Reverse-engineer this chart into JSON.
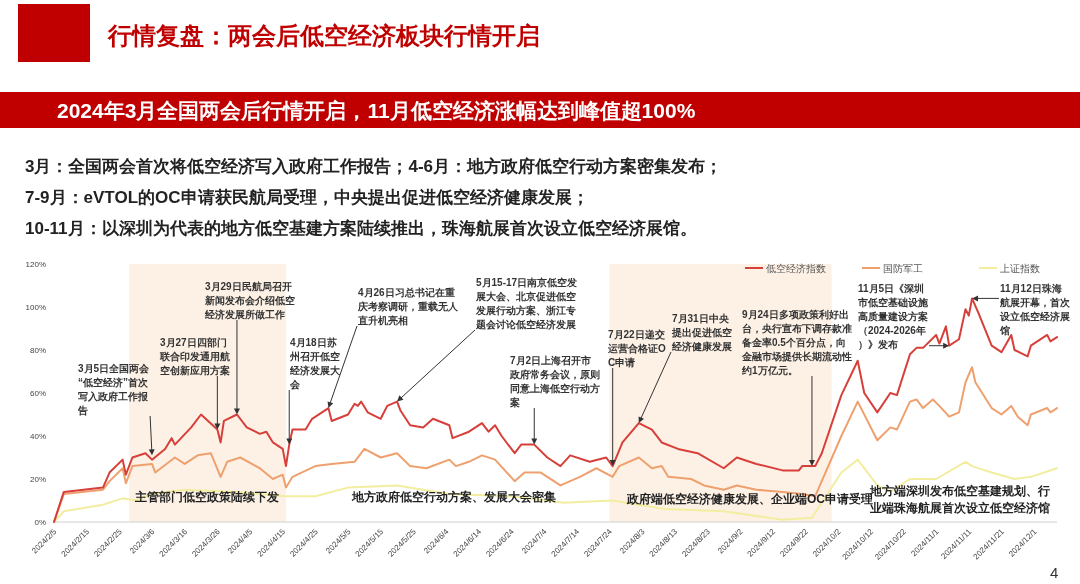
{
  "chart_data": {
    "type": "line",
    "title": "行情复盘：两会后低空经济板块行情开启",
    "subtitle": "2024年3月全国两会后行情开启，11月低空经济涨幅达到峰值超100%",
    "xlim": [
      "2024-02-05",
      "2024-12-08"
    ],
    "xticks": [
      {
        "value": "2024-02-05",
        "label": "2024/2/5"
      },
      {
        "value": "2024-02-15",
        "label": "2024/2/15"
      },
      {
        "value": "2024-02-25",
        "label": "2024/2/25"
      },
      {
        "value": "2024-03-06",
        "label": "2024/3/6"
      },
      {
        "value": "2024-03-16",
        "label": "2024/3/16"
      },
      {
        "value": "2024-03-26",
        "label": "2024/3/26"
      },
      {
        "value": "2024-04-05",
        "label": "2024/4/5"
      },
      {
        "value": "2024-04-15",
        "label": "2024/4/15"
      },
      {
        "value": "2024-04-25",
        "label": "2024/4/25"
      },
      {
        "value": "2024-05-05",
        "label": "2024/5/5"
      },
      {
        "value": "2024-05-15",
        "label": "2024/5/15"
      },
      {
        "value": "2024-05-25",
        "label": "2024/5/25"
      },
      {
        "value": "2024-06-04",
        "label": "2024/6/4"
      },
      {
        "value": "2024-06-14",
        "label": "2024/6/14"
      },
      {
        "value": "2024-06-24",
        "label": "2024/6/24"
      },
      {
        "value": "2024-07-04",
        "label": "2024/7/4"
      },
      {
        "value": "2024-07-14",
        "label": "2024/7/14"
      },
      {
        "value": "2024-07-24",
        "label": "2024/7/24"
      },
      {
        "value": "2024-08-03",
        "label": "2024/8/3"
      },
      {
        "value": "2024-08-13",
        "label": "2024/8/13"
      },
      {
        "value": "2024-08-23",
        "label": "2024/8/23"
      },
      {
        "value": "2024-09-02",
        "label": "2024/9/2"
      },
      {
        "value": "2024-09-12",
        "label": "2024/9/12"
      },
      {
        "value": "2024-09-22",
        "label": "2024/9/22"
      },
      {
        "value": "2024-10-02",
        "label": "2024/10/2"
      },
      {
        "value": "2024-10-12",
        "label": "2024/10/12"
      },
      {
        "value": "2024-10-22",
        "label": "2024/10/22"
      },
      {
        "value": "2024-11-01",
        "label": "2024/11/1"
      },
      {
        "value": "2024-11-11",
        "label": "2024/11/11"
      },
      {
        "value": "2024-11-21",
        "label": "2024/11/21"
      },
      {
        "value": "2024-12-01",
        "label": "2024/12/1"
      }
    ],
    "ylim": [
      0,
      120
    ],
    "yticks": [
      {
        "value": 0,
        "label": "0%"
      },
      {
        "value": 20,
        "label": "20%"
      },
      {
        "value": 40,
        "label": "40%"
      },
      {
        "value": 60,
        "label": "60%"
      },
      {
        "value": 80,
        "label": "80%"
      },
      {
        "value": 100,
        "label": "100%"
      },
      {
        "value": 120,
        "label": "120%"
      }
    ],
    "legend": "top right",
    "bands": [
      {
        "axis": "x",
        "from": "2024-02-28",
        "to": "2024-04-16",
        "color": "#fdf1e6"
      },
      {
        "axis": "x",
        "from": "2024-07-24",
        "to": "2024-09-30",
        "color": "#fdf1e6"
      }
    ],
    "series": [
      {
        "name": "低空经济指数",
        "color": "#d7403a",
        "x": [
          "2024-02-05",
          "2024-02-08",
          "2024-02-20",
          "2024-02-22",
          "2024-02-26",
          "2024-02-27",
          "2024-02-29",
          "2024-03-04",
          "2024-03-06",
          "2024-03-10",
          "2024-03-12",
          "2024-03-13",
          "2024-03-18",
          "2024-03-21",
          "2024-03-26",
          "2024-03-27",
          "2024-03-28",
          "2024-04-01",
          "2024-04-04",
          "2024-04-08",
          "2024-04-10",
          "2024-04-12",
          "2024-04-15",
          "2024-04-16",
          "2024-04-17",
          "2024-04-18",
          "2024-04-22",
          "2024-04-24",
          "2024-04-29",
          "2024-04-30",
          "2024-05-05",
          "2024-05-07",
          "2024-05-08",
          "2024-05-09",
          "2024-05-11",
          "2024-05-15",
          "2024-05-17",
          "2024-05-20",
          "2024-05-21",
          "2024-05-24",
          "2024-05-28",
          "2024-05-31",
          "2024-06-05",
          "2024-06-06",
          "2024-06-11",
          "2024-06-15",
          "2024-06-17",
          "2024-06-19",
          "2024-06-21",
          "2024-06-25",
          "2024-06-27",
          "2024-07-01",
          "2024-07-05",
          "2024-07-09",
          "2024-07-12",
          "2024-07-18",
          "2024-07-23",
          "2024-07-25",
          "2024-07-28",
          "2024-08-02",
          "2024-08-06",
          "2024-08-09",
          "2024-08-14",
          "2024-08-20",
          "2024-08-28",
          "2024-09-01",
          "2024-09-07",
          "2024-09-15",
          "2024-09-20",
          "2024-09-21",
          "2024-09-25",
          "2024-09-27",
          "2024-10-03",
          "2024-10-08",
          "2024-10-10",
          "2024-10-14",
          "2024-10-18",
          "2024-10-20",
          "2024-10-24",
          "2024-10-26",
          "2024-10-28",
          "2024-11-01",
          "2024-11-02",
          "2024-11-04",
          "2024-11-05",
          "2024-11-08",
          "2024-11-10",
          "2024-11-11",
          "2024-11-12",
          "2024-11-14",
          "2024-11-18",
          "2024-11-21",
          "2024-11-24",
          "2024-11-25",
          "2024-11-29",
          "2024-11-30",
          "2024-12-05",
          "2024-12-06",
          "2024-12-08"
        ],
        "values": [
          0,
          14,
          16,
          23,
          29,
          22,
          30,
          32,
          29,
          34,
          39,
          36,
          44,
          50,
          43,
          37,
          47,
          50,
          44,
          41,
          42,
          37,
          34,
          26,
          36,
          43,
          43,
          48,
          53,
          47,
          50,
          55,
          54,
          56,
          51,
          48,
          54,
          56,
          52,
          45,
          44,
          48,
          45,
          39,
          42,
          46,
          42,
          45,
          40,
          32,
          36,
          36,
          30,
          26,
          31,
          28,
          30,
          26,
          37,
          46,
          43,
          37,
          34,
          32,
          25,
          30,
          27,
          24,
          24,
          26,
          26,
          32,
          59,
          75,
          60,
          51,
          60,
          59,
          78,
          81,
          81,
          87,
          83,
          91,
          82,
          85,
          99,
          96,
          104,
          97,
          82,
          79,
          87,
          80,
          77,
          82,
          87,
          84,
          86
        ]
      },
      {
        "name": "国防军工",
        "color": "#eea06e",
        "x": [
          "2024-02-05",
          "2024-02-08",
          "2024-02-20",
          "2024-02-22",
          "2024-02-26",
          "2024-02-27",
          "2024-02-29",
          "2024-03-06",
          "2024-03-07",
          "2024-03-13",
          "2024-03-16",
          "2024-03-20",
          "2024-03-24",
          "2024-03-27",
          "2024-03-29",
          "2024-04-02",
          "2024-04-08",
          "2024-04-12",
          "2024-04-15",
          "2024-04-16",
          "2024-04-18",
          "2024-04-25",
          "2024-04-30",
          "2024-05-07",
          "2024-05-10",
          "2024-05-15",
          "2024-05-20",
          "2024-05-24",
          "2024-05-29",
          "2024-06-05",
          "2024-06-07",
          "2024-06-11",
          "2024-06-15",
          "2024-06-19",
          "2024-06-25",
          "2024-06-28",
          "2024-07-03",
          "2024-07-09",
          "2024-07-15",
          "2024-07-20",
          "2024-07-25",
          "2024-07-27",
          "2024-08-02",
          "2024-08-06",
          "2024-08-09",
          "2024-08-11",
          "2024-08-18",
          "2024-08-22",
          "2024-08-28",
          "2024-09-01",
          "2024-09-07",
          "2024-09-15",
          "2024-09-21",
          "2024-09-25",
          "2024-10-03",
          "2024-10-08",
          "2024-10-14",
          "2024-10-18",
          "2024-10-20",
          "2024-10-24",
          "2024-10-26",
          "2024-10-28",
          "2024-10-31",
          "2024-11-02",
          "2024-11-05",
          "2024-11-08",
          "2024-11-10",
          "2024-11-12",
          "2024-11-13",
          "2024-11-18",
          "2024-11-21",
          "2024-11-24",
          "2024-11-26",
          "2024-11-29",
          "2024-11-30",
          "2024-12-05",
          "2024-12-06",
          "2024-12-08"
        ],
        "values": [
          0,
          13,
          15,
          19,
          25,
          18,
          26,
          27,
          23,
          30,
          27,
          31,
          32,
          21,
          28,
          30,
          25,
          20,
          22,
          16,
          21,
          26,
          27,
          28,
          34,
          30,
          32,
          26,
          25,
          29,
          26,
          28,
          31,
          29,
          19,
          23,
          23,
          17,
          21,
          25,
          21,
          26,
          30,
          25,
          26,
          21,
          20,
          17,
          15,
          17,
          15,
          14,
          13,
          12,
          40,
          56,
          38,
          44,
          43,
          56,
          57,
          53,
          57,
          54,
          49,
          51,
          65,
          72,
          65,
          53,
          50,
          54,
          49,
          45,
          50,
          53,
          51,
          53
        ]
      },
      {
        "name": "上证指数",
        "color": "#f3eda0",
        "x": [
          "2024-02-05",
          "2024-02-08",
          "2024-02-20",
          "2024-02-26",
          "2024-03-01",
          "2024-03-06",
          "2024-03-16",
          "2024-04-01",
          "2024-04-16",
          "2024-04-25",
          "2024-05-05",
          "2024-05-20",
          "2024-06-05",
          "2024-06-24",
          "2024-07-10",
          "2024-07-25",
          "2024-08-10",
          "2024-08-28",
          "2024-09-15",
          "2024-09-24",
          "2024-10-03",
          "2024-10-08",
          "2024-10-14",
          "2024-10-18",
          "2024-10-24",
          "2024-11-01",
          "2024-11-10",
          "2024-11-12",
          "2024-11-18",
          "2024-11-25",
          "2024-11-30",
          "2024-12-08"
        ],
        "values": [
          0,
          5,
          8,
          11,
          10,
          13,
          15,
          14,
          12,
          12,
          16,
          17,
          13,
          12,
          9,
          10,
          6,
          5,
          1,
          2,
          23,
          29,
          17,
          14,
          20,
          20,
          28,
          26,
          23,
          20,
          21,
          25
        ]
      }
    ],
    "annotations": [
      "3月：全国两会首次将低空经济写入政府工作报告；4-6月：地方政府低空行动方案密集发布；",
      "7-9月：eVTOL的OC申请获民航局受理，中央提出促进低空经济健康发展；",
      "10-11月：以深圳为代表的地方低空基建方案陆续推出，珠海航展首次设立低空经济展馆。",
      {
        "text": "3月5日全国两会“低空经济”首次写入政府工作报告",
        "x": "2024-03-06",
        "y": 31
      },
      {
        "text": "3月27日四部门联合印发通用航空创新应用方案",
        "x": "2024-03-26",
        "y": 43
      },
      {
        "text": "3月29日民航局召开新闻发布会介绍低空经济发展所做工作",
        "x": "2024-04-01",
        "y": 50
      },
      {
        "text": "4月18日苏州召开低空经济发展大会",
        "x": "2024-04-17",
        "y": 36
      },
      {
        "text": "4月26日习总书记在重庆考察调研，重载无人直升机亮相",
        "x": "2024-04-29",
        "y": 53
      },
      {
        "text": "5月15-17日南京低空发展大会、北京促进低空发展行动方案、浙江专题会讨论低空经济发展",
        "x": "2024-05-20",
        "y": 56
      },
      {
        "text": "7月2日上海召开市政府常务会议，原则同意上海低空行动方案",
        "x": "2024-07-01",
        "y": 36
      },
      {
        "text": "7月22日递交运营合格证OC申请",
        "x": "2024-07-25",
        "y": 26
      },
      {
        "text": "7月31日中央提出促进低空经济健康发展",
        "x": "2024-08-02",
        "y": 46
      },
      {
        "text": "9月24日多项政策利好出台，央行宣布下调存款准备金率0.5个百分点，向金融市场提供长期流动性约1万亿元。",
        "x": "2024-09-24",
        "y": 26
      },
      {
        "text": "11月5日《深圳市低空基础设施高质量建设方案（2024-2026年）》发布",
        "x": "2024-11-05",
        "y": 82
      },
      {
        "text": "11月12日珠海航展开幕，首次设立低空经济展馆",
        "x": "2024-11-12",
        "y": 104
      },
      "主管部门低空政策陆续下发",
      "地方政府低空行动方案、发展大会密集",
      "政府端低空经济健康发展、企业端OC申请受理",
      "地方端深圳发布低空基建规划、行业端珠海航展首次设立低空经济馆",
      "4"
    ]
  }
}
